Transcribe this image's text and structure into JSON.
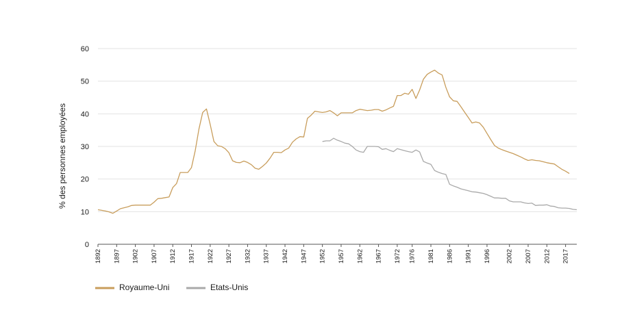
{
  "chart_data": {
    "type": "line",
    "ylabel": "% des personnes employées",
    "xlabel": "",
    "title": "",
    "ylim": [
      0,
      60
    ],
    "xlim": [
      1892,
      2020
    ],
    "yticks": [
      0,
      10,
      20,
      30,
      40,
      50,
      60
    ],
    "xticks": [
      1892,
      1897,
      1902,
      1907,
      1912,
      1917,
      1922,
      1927,
      1932,
      1937,
      1942,
      1947,
      1952,
      1957,
      1962,
      1967,
      1972,
      1976,
      1981,
      1986,
      1991,
      1996,
      2002,
      2007,
      2012,
      2017
    ],
    "grid": true,
    "legend_position": "bottom-left",
    "series": [
      {
        "name": "Royaume-Uni",
        "color": "#c89d5b",
        "points": [
          [
            1892,
            10.6
          ],
          [
            1893,
            10.4
          ],
          [
            1894,
            10.2
          ],
          [
            1895,
            9.9
          ],
          [
            1896,
            9.5
          ],
          [
            1897,
            10.2
          ],
          [
            1898,
            10.9
          ],
          [
            1899,
            11.2
          ],
          [
            1900,
            11.5
          ],
          [
            1901,
            11.9
          ],
          [
            1902,
            12.0
          ],
          [
            1903,
            12.0
          ],
          [
            1904,
            12.0
          ],
          [
            1905,
            12.0
          ],
          [
            1906,
            12.0
          ],
          [
            1907,
            12.9
          ],
          [
            1908,
            14.0
          ],
          [
            1909,
            14.1
          ],
          [
            1910,
            14.3
          ],
          [
            1911,
            14.5
          ],
          [
            1912,
            17.4
          ],
          [
            1913,
            18.6
          ],
          [
            1914,
            22.0
          ],
          [
            1915,
            22.0
          ],
          [
            1916,
            22.0
          ],
          [
            1917,
            23.5
          ],
          [
            1918,
            28.7
          ],
          [
            1919,
            35.3
          ],
          [
            1920,
            40.4
          ],
          [
            1921,
            41.5
          ],
          [
            1922,
            36.8
          ],
          [
            1923,
            31.5
          ],
          [
            1924,
            30.2
          ],
          [
            1925,
            30.0
          ],
          [
            1926,
            29.3
          ],
          [
            1927,
            28.1
          ],
          [
            1928,
            25.6
          ],
          [
            1929,
            25.1
          ],
          [
            1930,
            25.0
          ],
          [
            1931,
            25.5
          ],
          [
            1932,
            25.1
          ],
          [
            1933,
            24.4
          ],
          [
            1934,
            23.3
          ],
          [
            1935,
            23.0
          ],
          [
            1936,
            23.9
          ],
          [
            1937,
            24.9
          ],
          [
            1938,
            26.4
          ],
          [
            1939,
            28.2
          ],
          [
            1940,
            28.2
          ],
          [
            1941,
            28.1
          ],
          [
            1942,
            28.9
          ],
          [
            1943,
            29.5
          ],
          [
            1944,
            31.3
          ],
          [
            1945,
            32.3
          ],
          [
            1946,
            33.0
          ],
          [
            1947,
            32.9
          ],
          [
            1948,
            38.6
          ],
          [
            1949,
            39.6
          ],
          [
            1950,
            40.8
          ],
          [
            1951,
            40.6
          ],
          [
            1952,
            40.4
          ],
          [
            1953,
            40.6
          ],
          [
            1954,
            41.0
          ],
          [
            1955,
            40.3
          ],
          [
            1956,
            39.4
          ],
          [
            1957,
            40.3
          ],
          [
            1958,
            40.3
          ],
          [
            1959,
            40.3
          ],
          [
            1960,
            40.3
          ],
          [
            1961,
            41.0
          ],
          [
            1962,
            41.4
          ],
          [
            1963,
            41.2
          ],
          [
            1964,
            41.0
          ],
          [
            1965,
            41.1
          ],
          [
            1966,
            41.3
          ],
          [
            1967,
            41.3
          ],
          [
            1968,
            40.8
          ],
          [
            1969,
            41.2
          ],
          [
            1970,
            41.8
          ],
          [
            1971,
            42.3
          ],
          [
            1972,
            45.6
          ],
          [
            1973,
            45.6
          ],
          [
            1974,
            46.3
          ],
          [
            1975,
            46.0
          ],
          [
            1976,
            47.5
          ],
          [
            1977,
            44.7
          ],
          [
            1978,
            47.3
          ],
          [
            1979,
            50.6
          ],
          [
            1980,
            52.1
          ],
          [
            1981,
            52.8
          ],
          [
            1982,
            53.4
          ],
          [
            1983,
            52.5
          ],
          [
            1984,
            51.9
          ],
          [
            1985,
            48.1
          ],
          [
            1986,
            45.2
          ],
          [
            1987,
            44.0
          ],
          [
            1988,
            43.8
          ],
          [
            1989,
            42.2
          ],
          [
            1990,
            40.5
          ],
          [
            1991,
            38.9
          ],
          [
            1992,
            37.2
          ],
          [
            1993,
            37.5
          ],
          [
            1994,
            37.2
          ],
          [
            1995,
            35.9
          ],
          [
            1996,
            34.0
          ],
          [
            1997,
            32.1
          ],
          [
            1998,
            30.3
          ],
          [
            1999,
            29.5
          ],
          [
            2000,
            29.0
          ],
          [
            2001,
            28.6
          ],
          [
            2002,
            28.2
          ],
          [
            2003,
            27.8
          ],
          [
            2004,
            27.3
          ],
          [
            2005,
            26.8
          ],
          [
            2006,
            26.2
          ],
          [
            2007,
            25.7
          ],
          [
            2008,
            25.9
          ],
          [
            2009,
            25.7
          ],
          [
            2010,
            25.6
          ],
          [
            2011,
            25.3
          ],
          [
            2012,
            25.0
          ],
          [
            2013,
            24.8
          ],
          [
            2014,
            24.6
          ],
          [
            2015,
            23.8
          ],
          [
            2016,
            23.0
          ],
          [
            2017,
            22.4
          ],
          [
            2018,
            21.7
          ]
        ]
      },
      {
        "name": "Etats-Unis",
        "color": "#a9a9a9",
        "points": [
          [
            1952,
            31.5
          ],
          [
            1953,
            31.7
          ],
          [
            1954,
            31.7
          ],
          [
            1955,
            32.5
          ],
          [
            1956,
            31.9
          ],
          [
            1957,
            31.5
          ],
          [
            1958,
            31.0
          ],
          [
            1959,
            30.8
          ],
          [
            1960,
            30.0
          ],
          [
            1961,
            28.9
          ],
          [
            1962,
            28.4
          ],
          [
            1963,
            28.2
          ],
          [
            1964,
            30.0
          ],
          [
            1965,
            30.0
          ],
          [
            1966,
            30.0
          ],
          [
            1967,
            29.9
          ],
          [
            1968,
            29.1
          ],
          [
            1969,
            29.3
          ],
          [
            1970,
            28.8
          ],
          [
            1971,
            28.4
          ],
          [
            1972,
            29.3
          ],
          [
            1973,
            29.0
          ],
          [
            1974,
            28.7
          ],
          [
            1975,
            28.4
          ],
          [
            1976,
            28.2
          ],
          [
            1977,
            28.9
          ],
          [
            1978,
            28.3
          ],
          [
            1979,
            25.4
          ],
          [
            1980,
            24.9
          ],
          [
            1981,
            24.5
          ],
          [
            1982,
            22.6
          ],
          [
            1983,
            22.1
          ],
          [
            1984,
            21.7
          ],
          [
            1985,
            21.4
          ],
          [
            1986,
            18.4
          ],
          [
            1987,
            17.9
          ],
          [
            1988,
            17.5
          ],
          [
            1989,
            17.0
          ],
          [
            1990,
            16.7
          ],
          [
            1991,
            16.4
          ],
          [
            1992,
            16.1
          ],
          [
            1993,
            16.0
          ],
          [
            1994,
            15.8
          ],
          [
            1995,
            15.6
          ],
          [
            1996,
            15.2
          ],
          [
            1997,
            14.7
          ],
          [
            1998,
            14.2
          ],
          [
            1999,
            14.2
          ],
          [
            2000,
            14.1
          ],
          [
            2001,
            14.1
          ],
          [
            2002,
            13.3
          ],
          [
            2003,
            13.0
          ],
          [
            2004,
            13.0
          ],
          [
            2005,
            13.0
          ],
          [
            2006,
            12.7
          ],
          [
            2007,
            12.5
          ],
          [
            2008,
            12.6
          ],
          [
            2009,
            11.9
          ],
          [
            2010,
            12.0
          ],
          [
            2011,
            12.0
          ],
          [
            2012,
            12.1
          ],
          [
            2013,
            11.7
          ],
          [
            2014,
            11.6
          ],
          [
            2015,
            11.2
          ],
          [
            2016,
            11.1
          ],
          [
            2017,
            11.1
          ],
          [
            2018,
            11.0
          ],
          [
            2019,
            10.7
          ],
          [
            2020,
            10.6
          ]
        ]
      }
    ]
  }
}
